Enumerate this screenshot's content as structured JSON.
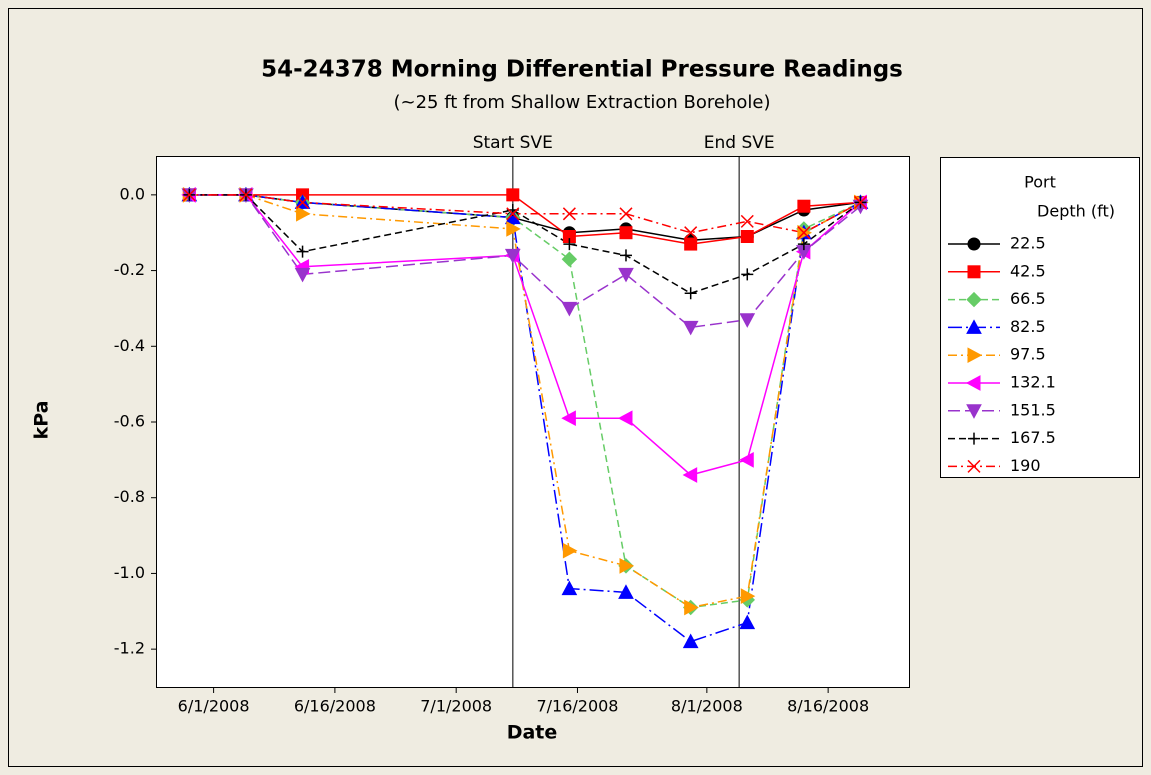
{
  "chart_data": {
    "type": "line",
    "title": "54-24378 Morning Differential Pressure Readings",
    "subtitle": "(~25 ft from Shallow Extraction Borehole)",
    "x_label": "Date",
    "y_label": "kPa",
    "x": [
      "5/29/2008",
      "6/5/2008",
      "6/12/2008",
      "7/8/2008",
      "7/15/2008",
      "7/22/2008",
      "7/30/2008",
      "8/6/2008",
      "8/13/2008",
      "8/20/2008"
    ],
    "xlim": [
      "5/25/2008",
      "8/26/2008"
    ],
    "xticks": [
      "6/1/2008",
      "6/16/2008",
      "7/1/2008",
      "7/16/2008",
      "8/1/2008",
      "8/16/2008"
    ],
    "ylim": [
      -1.3,
      0.1
    ],
    "yticks": [
      {
        "value": 0,
        "label": "0.0"
      },
      -0.2,
      -0.4,
      -0.6,
      -0.8,
      {
        "value": -1,
        "label": "-1.0"
      },
      -1.2
    ],
    "annotations": [
      {
        "text": "Start SVE",
        "x": "7/8/2008"
      },
      {
        "text": "End SVE",
        "x": "8/5/2008"
      }
    ],
    "legend_title": [
      "Port",
      "Depth (ft)"
    ],
    "series": [
      {
        "name": "22.5",
        "color": "#000000",
        "marker": "circle",
        "dash": "solid",
        "values": [
          0,
          0,
          -0.02,
          -0.06,
          -0.1,
          -0.09,
          -0.12,
          -0.11,
          -0.04,
          -0.02
        ]
      },
      {
        "name": "42.5",
        "color": "#ff0000",
        "marker": "square",
        "dash": "solid",
        "values": [
          0,
          0,
          0,
          0,
          -0.11,
          -0.1,
          -0.13,
          -0.11,
          -0.03,
          -0.02
        ]
      },
      {
        "name": "66.5",
        "color": "#66cc66",
        "marker": "diamond",
        "dash": "dash",
        "values": [
          0,
          0,
          -0.02,
          -0.06,
          -0.17,
          -0.98,
          -1.09,
          -1.07,
          -0.09,
          -0.02
        ]
      },
      {
        "name": "82.5",
        "color": "#0000ff",
        "marker": "triangle-up",
        "dash": "longdashdot",
        "values": [
          0,
          0,
          -0.02,
          -0.06,
          -1.04,
          -1.05,
          -1.18,
          -1.13,
          -0.1,
          -0.02
        ]
      },
      {
        "name": "97.5",
        "color": "#ff9900",
        "marker": "triangle-right",
        "dash": "dashdot",
        "values": [
          0,
          0,
          -0.05,
          -0.09,
          -0.94,
          -0.98,
          -1.09,
          -1.06,
          -0.1,
          -0.02
        ]
      },
      {
        "name": "132.1",
        "color": "#ff00ff",
        "marker": "triangle-left",
        "dash": "solid",
        "values": [
          0,
          0,
          -0.19,
          -0.16,
          -0.59,
          -0.59,
          -0.74,
          -0.7,
          -0.15,
          -0.02
        ]
      },
      {
        "name": "151.5",
        "color": "#9933cc",
        "marker": "triangle-down",
        "dash": "longdash",
        "values": [
          0,
          0,
          -0.21,
          -0.16,
          -0.3,
          -0.21,
          -0.35,
          -0.33,
          -0.15,
          -0.03
        ]
      },
      {
        "name": "167.5",
        "color": "#000000",
        "marker": "plus",
        "dash": "dash",
        "values": [
          0,
          0,
          -0.15,
          -0.04,
          -0.13,
          -0.16,
          -0.26,
          -0.21,
          -0.13,
          -0.02
        ]
      },
      {
        "name": "190",
        "color": "#ff0000",
        "marker": "x",
        "dash": "dashdot",
        "values": [
          0,
          0,
          -0.02,
          -0.05,
          -0.05,
          -0.05,
          -0.1,
          -0.07,
          -0.1,
          -0.02
        ]
      }
    ]
  }
}
